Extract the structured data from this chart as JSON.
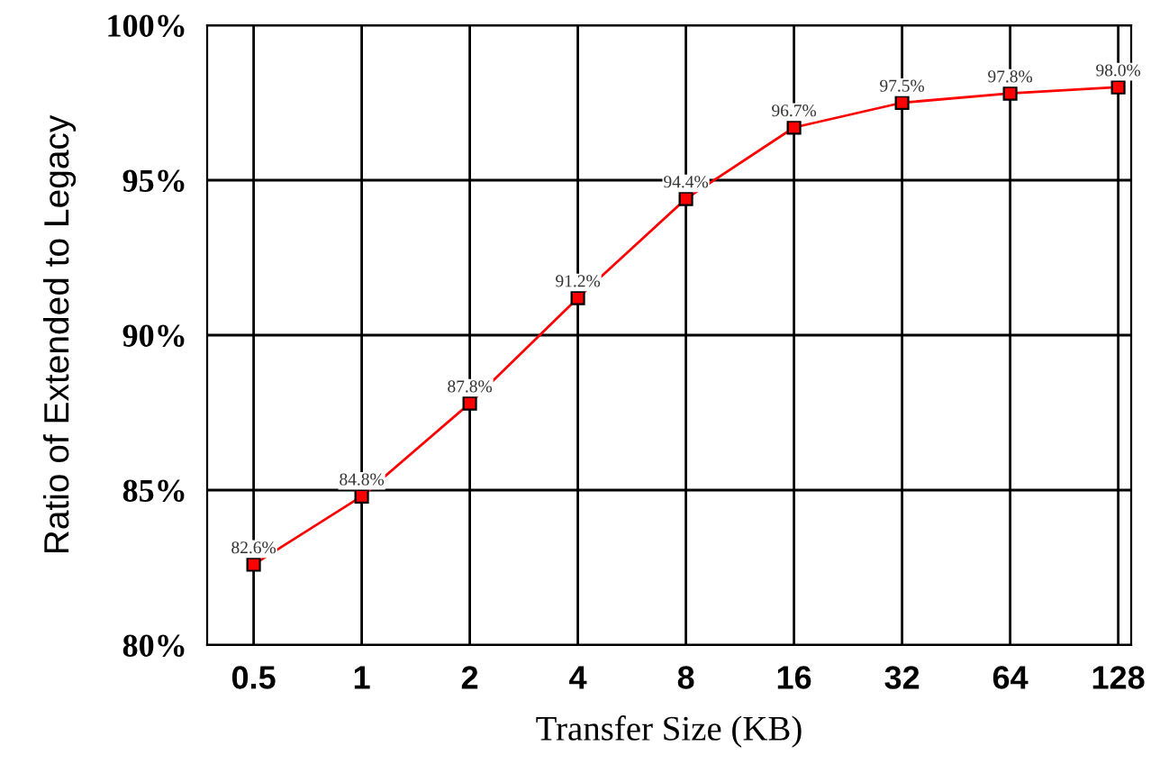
{
  "chart_data": {
    "type": "line",
    "xlabel": "Transfer Size (KB)",
    "ylabel": "Ratio of Extended to Legacy",
    "categories": [
      "0.5",
      "1",
      "2",
      "4",
      "8",
      "16",
      "32",
      "64",
      "128"
    ],
    "series": [
      {
        "color": "#ff0000",
        "values": [
          82.6,
          84.8,
          87.8,
          91.2,
          94.4,
          96.7,
          97.5,
          97.8,
          98.0
        ],
        "value_labels": [
          "82.6%",
          "84.8%",
          "87.8%",
          "91.2%",
          "94.4%",
          "96.7%",
          "97.5%",
          "97.8%",
          "98.0%"
        ]
      }
    ],
    "ylim": [
      80,
      100
    ],
    "yticks": [
      {
        "value": 80,
        "label": "80%"
      },
      {
        "value": 85,
        "label": "85%"
      },
      {
        "value": 90,
        "label": "90%"
      },
      {
        "value": 95,
        "label": "95%"
      },
      {
        "value": 100,
        "label": "100%"
      }
    ],
    "grid": true,
    "marker": "square",
    "line_style": "solid"
  }
}
